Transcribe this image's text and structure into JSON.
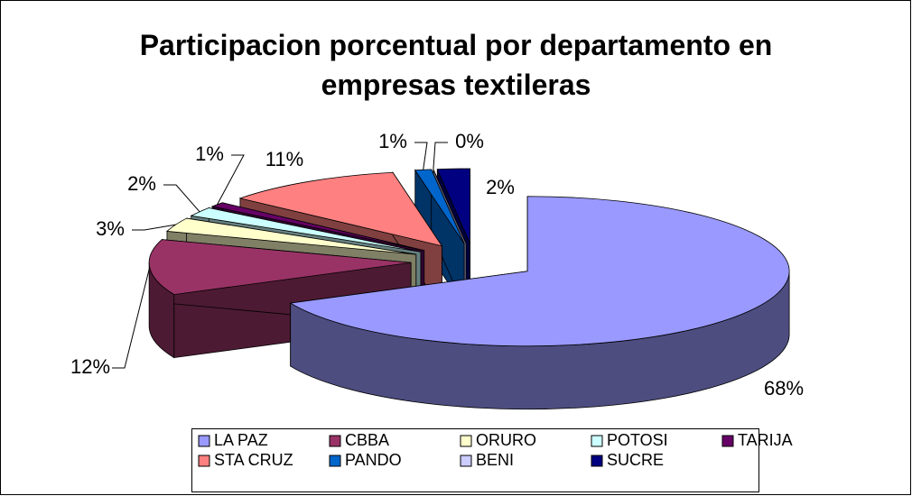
{
  "chart_data": {
    "type": "pie3d",
    "title": "Participacion porcentual por departamento en empresas textileras",
    "categories": [
      "LA PAZ",
      "CBBA",
      "ORURO",
      "POTOSI",
      "TARIJA",
      "STA CRUZ",
      "PANDO",
      "BENI",
      "SUCRE"
    ],
    "values": [
      68,
      12,
      3,
      2,
      1,
      11,
      1,
      0,
      2
    ],
    "value_labels": [
      "68%",
      "12%",
      "3%",
      "2%",
      "1%",
      "11%",
      "1%",
      "0%",
      "2%"
    ],
    "colors": [
      "#9999ff",
      "#993366",
      "#ffffcc",
      "#ccffff",
      "#660066",
      "#ff8080",
      "#0066cc",
      "#ccccff",
      "#000080"
    ],
    "legend": "bottom"
  }
}
